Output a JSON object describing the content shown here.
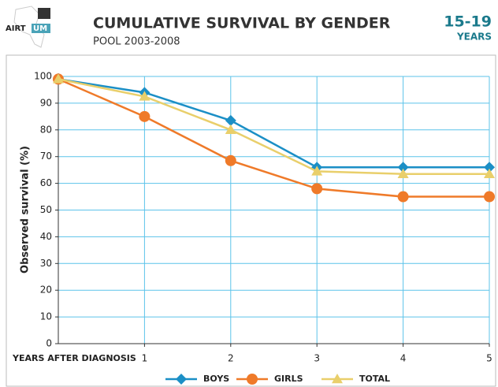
{
  "header": {
    "logo_left": "AIRT",
    "logo_right": "UM",
    "age": "15-19",
    "age_unit": "YEARS"
  },
  "chart_data": {
    "type": "line",
    "title": "CUMULATIVE SURVIVAL BY GENDER",
    "subtitle": "POOL 2003-2008",
    "x_label": "YEARS AFTER DIAGNOSIS",
    "y_label": "Observed survival (%)",
    "x": [
      0,
      1,
      2,
      3,
      4,
      5
    ],
    "xlim": [
      0,
      5
    ],
    "xticks": [
      1,
      2,
      3,
      4,
      5
    ],
    "ylim": [
      0,
      100
    ],
    "yticks": [
      0,
      10,
      20,
      30,
      40,
      50,
      60,
      70,
      80,
      90,
      100
    ],
    "grid": true,
    "legend": "bottom",
    "series": [
      {
        "name": "BOYS",
        "color": "#1b8fc6",
        "marker": "diamond",
        "values": [
          99,
          94,
          83.5,
          66,
          66,
          66
        ]
      },
      {
        "name": "GIRLS",
        "color": "#ef7a29",
        "marker": "circle",
        "values": [
          99,
          85,
          68.5,
          58,
          55,
          55
        ]
      },
      {
        "name": "TOTAL",
        "color": "#e9cf6b",
        "marker": "triangle",
        "values": [
          99,
          92.5,
          80,
          64.5,
          63.5,
          63.5
        ]
      }
    ]
  }
}
